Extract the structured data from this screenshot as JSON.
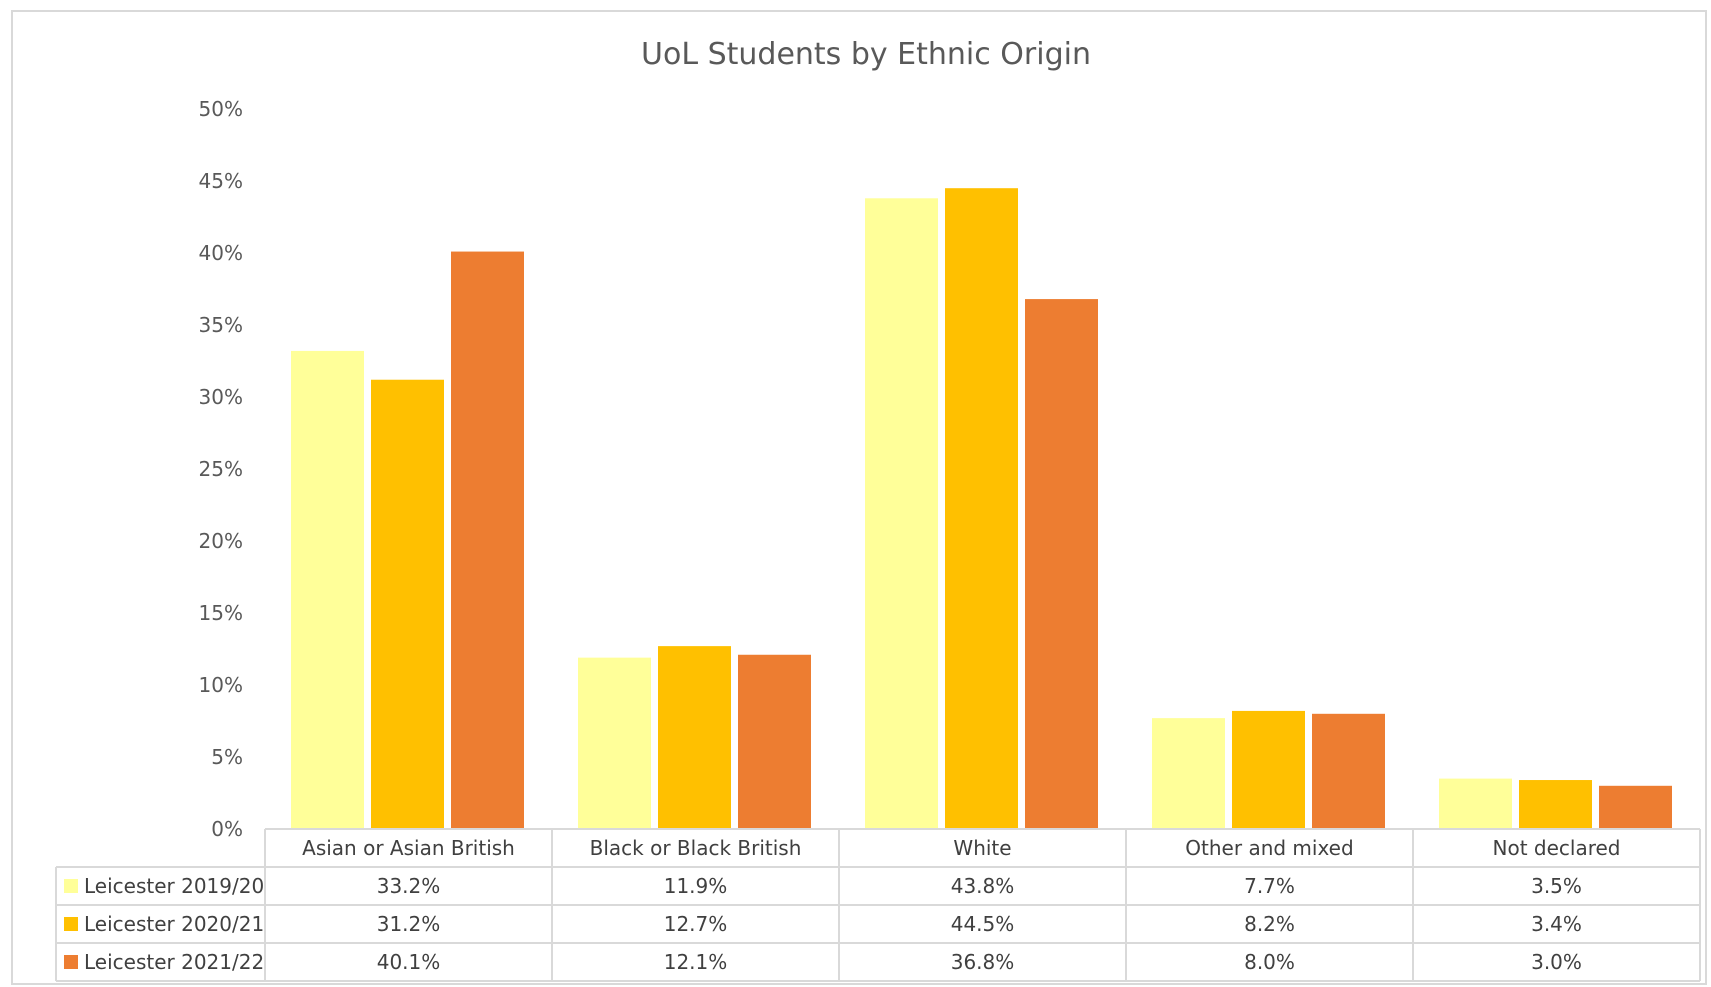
{
  "chart_data": {
    "type": "bar",
    "title": "UoL Students by Ethnic Origin",
    "categories": [
      "Asian or Asian British",
      "Black or Black British",
      "White",
      "Other and mixed",
      "Not declared"
    ],
    "series": [
      {
        "name": "Leicester 2019/20",
        "color": "#ffff99",
        "values": [
          33.2,
          11.9,
          43.8,
          7.7,
          3.5
        ],
        "labels": [
          "33.2%",
          "11.9%",
          "43.8%",
          "7.7%",
          "3.5%"
        ]
      },
      {
        "name": "Leicester 2020/21",
        "color": "#ffc000",
        "values": [
          31.2,
          12.7,
          44.5,
          8.2,
          3.4
        ],
        "labels": [
          "31.2%",
          "12.7%",
          "44.5%",
          "8.2%",
          "3.4%"
        ]
      },
      {
        "name": "Leicester 2021/22",
        "color": "#ed7d31",
        "values": [
          40.1,
          12.1,
          36.8,
          8.0,
          3.0
        ],
        "labels": [
          "40.1%",
          "12.1%",
          "36.8%",
          "8.0%",
          "3.0%"
        ]
      }
    ],
    "ylim": [
      0,
      50
    ],
    "yticks": [
      "0%",
      "5%",
      "10%",
      "15%",
      "20%",
      "25%",
      "30%",
      "35%",
      "40%",
      "45%",
      "50%"
    ],
    "grid": false,
    "legend": "data table"
  }
}
